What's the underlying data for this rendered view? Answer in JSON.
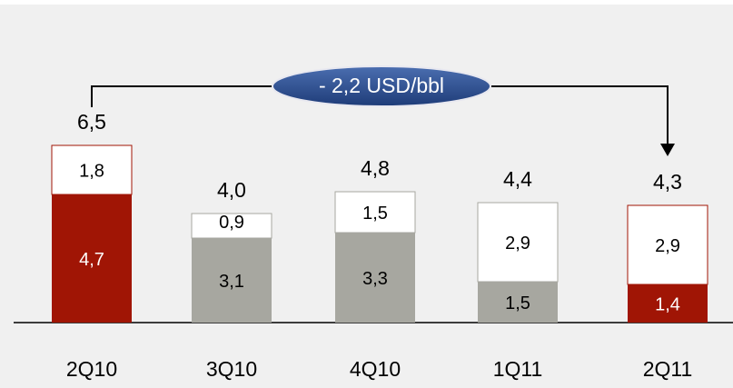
{
  "chart_data": {
    "type": "stacked_bar",
    "annotation": "- 2,2 USD/bbl",
    "categories": [
      "2Q10",
      "3Q10",
      "4Q10",
      "1Q11",
      "2Q11"
    ],
    "series": [
      {
        "colors": [
          "#a01505",
          "#a7a7a0",
          "#a7a7a0",
          "#a7a7a0",
          "#a01505"
        ],
        "label_colors": [
          "#ffffff",
          "#000000",
          "#000000",
          "#000000",
          "#ffffff"
        ],
        "values": [
          4.7,
          3.1,
          3.3,
          1.5,
          1.4
        ],
        "value_labels": [
          "4,7",
          "3,1",
          "3,3",
          "1,5",
          "1,4"
        ]
      },
      {
        "color": "#ffffff",
        "values": [
          1.8,
          0.9,
          1.5,
          2.9,
          2.9
        ],
        "value_labels": [
          "1,8",
          "0,9",
          "1,5",
          "2,9",
          "2,9"
        ]
      }
    ],
    "totals": [
      6.5,
      4.0,
      4.8,
      4.4,
      4.3
    ],
    "total_labels": [
      "6,5",
      "4,0",
      "4,8",
      "4,4",
      "4,3"
    ]
  }
}
